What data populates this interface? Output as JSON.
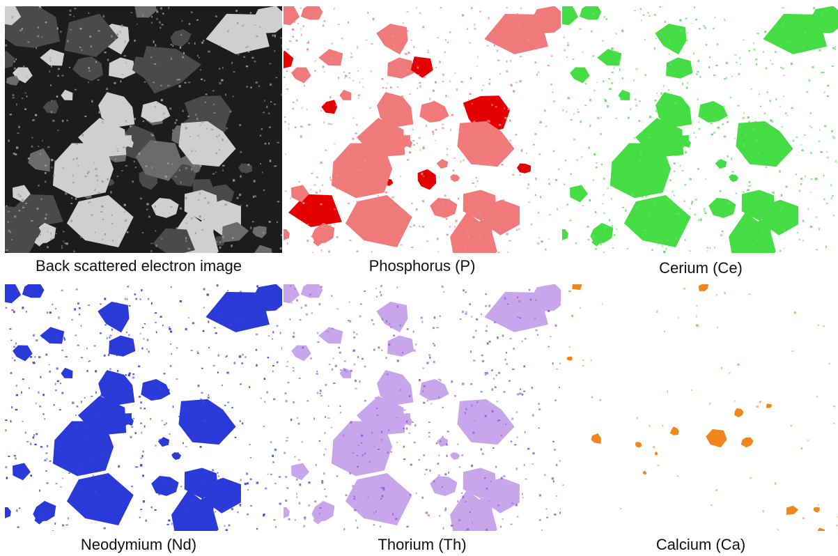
{
  "panels": [
    {
      "label": "Back scattered electron image"
    },
    {
      "label": "Phosphorus (P)"
    },
    {
      "label": "Cerium (Ce)"
    },
    {
      "label": "Neodymium (Nd)"
    },
    {
      "label": "Thorium (Th)"
    },
    {
      "label": "Calcium (Ca)"
    }
  ]
}
